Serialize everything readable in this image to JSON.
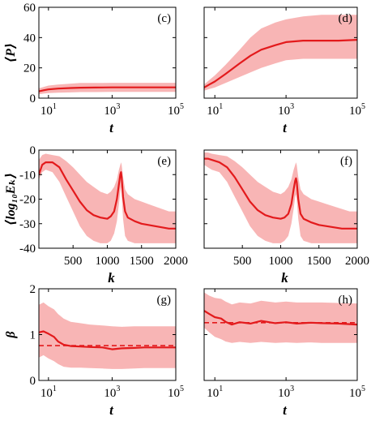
{
  "chart_data": [
    {
      "panel": "(c)",
      "type": "line",
      "xscale": "log",
      "xlim": [
        5,
        100000
      ],
      "ylim": [
        0,
        60
      ],
      "xticks": [
        10,
        1000,
        100000
      ],
      "xtick_labels": [
        [
          "10",
          "1"
        ],
        [
          "10",
          "3"
        ],
        [
          "10",
          "5"
        ]
      ],
      "yticks": [
        0,
        20,
        40,
        60
      ],
      "ytick_labels": [
        "0",
        "20",
        "40",
        "60"
      ],
      "xlabel": "t",
      "ylabel": "⟨P⟩",
      "mean": {
        "x": [
          5,
          7,
          10,
          20,
          50,
          100,
          300,
          1000,
          3000,
          10000,
          30000,
          100000
        ],
        "y": [
          4.5,
          5.2,
          5.8,
          6.3,
          6.7,
          6.9,
          7.0,
          7.1,
          7.1,
          7.1,
          7.1,
          7.1
        ]
      },
      "band_lower": [
        2.5,
        3.0,
        3.3,
        3.6,
        3.8,
        4.0,
        4.0,
        4.1,
        4.1,
        4.1,
        4.1,
        4.1
      ],
      "band_upper": [
        6.5,
        7.4,
        8.3,
        9.0,
        9.6,
        10.0,
        10.0,
        10.1,
        10.1,
        10.1,
        10.1,
        10.1
      ]
    },
    {
      "panel": "(d)",
      "type": "line",
      "xscale": "log",
      "xlim": [
        5,
        100000
      ],
      "ylim": [
        0,
        60
      ],
      "xticks": [
        10,
        1000,
        100000
      ],
      "xtick_labels": [
        [
          "10",
          "1"
        ],
        [
          "10",
          "3"
        ],
        [
          "10",
          "5"
        ]
      ],
      "yticks": [
        0,
        20,
        40,
        60
      ],
      "ytick_labels": [],
      "xlabel": "t",
      "ylabel": "",
      "mean": {
        "x": [
          5,
          7,
          10,
          20,
          50,
          100,
          200,
          500,
          1000,
          3000,
          10000,
          30000,
          100000
        ],
        "y": [
          7,
          9,
          11,
          16,
          23,
          28,
          32,
          35,
          37,
          38,
          38,
          38,
          38.5
        ]
      },
      "band_lower": [
        5,
        6,
        7,
        10,
        14,
        17,
        20,
        23,
        25,
        26,
        26,
        26,
        26
      ],
      "band_upper": [
        9,
        12,
        15,
        22,
        32,
        40,
        46,
        50,
        52,
        54,
        55,
        55,
        55
      ]
    },
    {
      "panel": "(e)",
      "type": "line",
      "xscale": "linear",
      "xlim": [
        1,
        2000
      ],
      "ylim": [
        -40,
        0
      ],
      "xticks": [
        500,
        1000,
        1500,
        2000
      ],
      "xtick_labels": [
        "500",
        "1000",
        "1500",
        "2000"
      ],
      "yticks": [
        0,
        -10,
        -20,
        -30,
        -40
      ],
      "ytick_labels": [
        "0",
        "-10",
        "-20",
        "-30",
        "-40"
      ],
      "xlabel": "k",
      "ylabel": "⟨log₁₀Eₖ⟩",
      "mean": {
        "x": [
          1,
          50,
          100,
          200,
          300,
          400,
          500,
          600,
          700,
          800,
          900,
          1000,
          1050,
          1100,
          1140,
          1170,
          1190,
          1200,
          1210,
          1230,
          1260,
          1300,
          1400,
          1500,
          1600,
          1700,
          1800,
          1900,
          2000
        ],
        "y": [
          -10,
          -6,
          -5,
          -5,
          -7,
          -12,
          -16.5,
          -21,
          -24.5,
          -26.5,
          -27.5,
          -28,
          -27,
          -25,
          -20,
          -14,
          -10,
          -9,
          -11,
          -19,
          -25,
          -27.5,
          -29,
          -30,
          -30.5,
          -31,
          -31.5,
          -32,
          -32
        ]
      },
      "band_lower": [
        -12,
        -9,
        -8,
        -9,
        -13,
        -19,
        -25,
        -31,
        -35,
        -37,
        -38,
        -38,
        -37,
        -34,
        -29,
        -22,
        -17,
        -15,
        -18,
        -28,
        -35,
        -37,
        -38,
        -38,
        -38,
        -38,
        -38,
        -38,
        -38
      ],
      "band_upper": [
        -4,
        -2,
        -1.5,
        -2,
        -2.5,
        -4.5,
        -7,
        -10,
        -13,
        -15,
        -17,
        -18,
        -17,
        -15,
        -12,
        -8,
        -6,
        -5,
        -6,
        -11,
        -16,
        -18,
        -20,
        -21,
        -22,
        -23,
        -24,
        -25,
        -25
      ]
    },
    {
      "panel": "(f)",
      "type": "line",
      "xscale": "linear",
      "xlim": [
        1,
        2000
      ],
      "ylim": [
        -40,
        0
      ],
      "xticks": [
        500,
        1000,
        1500,
        2000
      ],
      "xtick_labels": [
        "500",
        "1000",
        "1500",
        "2000"
      ],
      "yticks": [
        0,
        -10,
        -20,
        -30,
        -40
      ],
      "ytick_labels": [],
      "xlabel": "k",
      "ylabel": "",
      "mean": {
        "x": [
          1,
          50,
          100,
          200,
          300,
          400,
          500,
          600,
          700,
          800,
          900,
          1000,
          1050,
          1100,
          1140,
          1170,
          1190,
          1200,
          1210,
          1230,
          1260,
          1300,
          1400,
          1500,
          1600,
          1700,
          1800,
          1900,
          2000
        ],
        "y": [
          -3.5,
          -3.5,
          -4,
          -5,
          -7,
          -11,
          -16,
          -21,
          -24.5,
          -26.5,
          -27.5,
          -28,
          -27.5,
          -26,
          -22,
          -16,
          -12.5,
          -11.5,
          -13,
          -20,
          -26,
          -28,
          -29.5,
          -30.5,
          -31,
          -31.5,
          -32,
          -32,
          -32
        ]
      },
      "band_lower": [
        -6,
        -7,
        -8,
        -9,
        -13,
        -19,
        -25,
        -31,
        -35,
        -37,
        -38,
        -38,
        -37,
        -35,
        -30,
        -24,
        -19,
        -18,
        -20,
        -28,
        -35,
        -37,
        -38,
        -38,
        -38,
        -38,
        -38,
        -38,
        -38
      ],
      "band_upper": [
        -1,
        -1,
        -1.5,
        -2,
        -2.5,
        -4.5,
        -7,
        -10,
        -13,
        -15,
        -17,
        -18,
        -17,
        -15,
        -12,
        -8,
        -6,
        -5,
        -6,
        -11,
        -16,
        -18,
        -20,
        -21,
        -22,
        -23,
        -24,
        -25,
        -25
      ]
    },
    {
      "panel": "(g)",
      "type": "line",
      "xscale": "log",
      "xlim": [
        5,
        100000
      ],
      "ylim": [
        0,
        2
      ],
      "xticks": [
        10,
        1000,
        100000
      ],
      "xtick_labels": [
        [
          "10",
          "1"
        ],
        [
          "10",
          "3"
        ],
        [
          "10",
          "5"
        ]
      ],
      "yticks": [
        0,
        1,
        2
      ],
      "ytick_labels": [
        "0",
        "1",
        "2"
      ],
      "xlabel": "t",
      "ylabel": "β",
      "mean": {
        "x": [
          5,
          7,
          10,
          15,
          20,
          30,
          50,
          100,
          200,
          500,
          1000,
          2000,
          5000,
          10000,
          30000,
          100000
        ],
        "y": [
          1.05,
          1.07,
          1.02,
          0.95,
          0.85,
          0.78,
          0.75,
          0.74,
          0.73,
          0.72,
          0.68,
          0.7,
          0.71,
          0.72,
          0.72,
          0.72
        ]
      },
      "band_lower": [
        0.5,
        0.55,
        0.48,
        0.42,
        0.36,
        0.3,
        0.28,
        0.28,
        0.27,
        0.26,
        0.25,
        0.25,
        0.26,
        0.27,
        0.27,
        0.27
      ],
      "band_upper": [
        1.65,
        1.7,
        1.62,
        1.55,
        1.45,
        1.35,
        1.28,
        1.25,
        1.22,
        1.2,
        1.18,
        1.17,
        1.18,
        1.18,
        1.18,
        1.18
      ],
      "reference": {
        "y": 0.76,
        "style": "dashed"
      }
    },
    {
      "panel": "(h)",
      "type": "line",
      "xscale": "log",
      "xlim": [
        5,
        100000
      ],
      "ylim": [
        0,
        2
      ],
      "xticks": [
        10,
        1000,
        100000
      ],
      "xtick_labels": [
        [
          "10",
          "1"
        ],
        [
          "10",
          "3"
        ],
        [
          "10",
          "5"
        ]
      ],
      "yticks": [
        0,
        1,
        2
      ],
      "ytick_labels": [],
      "xlabel": "t",
      "ylabel": "",
      "mean": {
        "x": [
          5,
          7,
          10,
          15,
          20,
          30,
          50,
          100,
          200,
          500,
          1000,
          2000,
          5000,
          10000,
          30000,
          100000
        ],
        "y": [
          1.52,
          1.45,
          1.38,
          1.35,
          1.28,
          1.22,
          1.27,
          1.24,
          1.3,
          1.25,
          1.27,
          1.24,
          1.26,
          1.25,
          1.24,
          1.22
        ]
      },
      "band_lower": [
        1.15,
        1.05,
        0.95,
        0.9,
        0.85,
        0.82,
        0.84,
        0.82,
        0.84,
        0.82,
        0.83,
        0.82,
        0.83,
        0.82,
        0.82,
        0.82
      ],
      "band_upper": [
        1.92,
        1.85,
        1.8,
        1.78,
        1.72,
        1.66,
        1.7,
        1.68,
        1.74,
        1.7,
        1.72,
        1.7,
        1.7,
        1.7,
        1.69,
        1.68
      ],
      "reference": {
        "y": 1.26,
        "style": "dashed"
      }
    }
  ],
  "colors": {
    "mean": "#e31a1c",
    "band": "#f7a8a8",
    "reference": "#e31a1c"
  }
}
